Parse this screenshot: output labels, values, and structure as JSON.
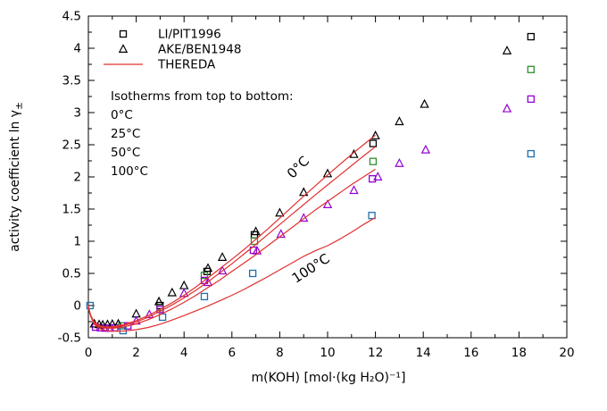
{
  "figure_title": "KOH activity coefficient isotherms",
  "colors": {
    "black": "#000000",
    "green": "#2e8f2e",
    "violet": "#9400d3",
    "blue": "#1f6eb0",
    "red": "#e03030",
    "frame": "#000000"
  },
  "chart_data": {
    "type": "scatter",
    "title": "",
    "xlabel": "m(KOH) [mol·(kg H₂O)⁻¹]",
    "ylabel_main": "activity coefficient ln γ",
    "ylabel_sub": "±",
    "xlim": [
      0,
      20
    ],
    "ylim": [
      -0.5,
      4.5
    ],
    "xtick_major": 2,
    "xtick_minor": 1,
    "ytick_major": 0.5,
    "ytick_minor": 0.25,
    "grid": false,
    "legend_position": "top-left-inside",
    "legend": [
      {
        "label": "LI/PIT1996",
        "marker": "square",
        "color": "#000000"
      },
      {
        "label": "AKE/BEN1948",
        "marker": "triangle",
        "color": "#000000"
      },
      {
        "label": "THEREDA",
        "marker": "line",
        "color": "#e03030"
      }
    ],
    "annotations": [
      {
        "text": "Isotherms from top to bottom:",
        "color": "#000000"
      },
      {
        "text": "0°C",
        "color": "#000000"
      },
      {
        "text": "25°C",
        "color": "#2e8f2e"
      },
      {
        "text": "50°C",
        "color": "#9400d3"
      },
      {
        "text": "100°C",
        "color": "#1f6eb0"
      }
    ],
    "curve_labels": [
      {
        "text": "0°C",
        "x": 8.9,
        "y": 2.1,
        "rot": -45
      },
      {
        "text": "100°C",
        "x": 9.4,
        "y": 0.52,
        "rot": -33
      }
    ],
    "series": [
      {
        "name": "LI/PIT1996 0C",
        "source": "LI/PIT1996",
        "temperature": "0°C",
        "marker": "square",
        "color": "#000000",
        "points": [
          [
            3.0,
            0.0
          ],
          [
            4.96,
            0.53
          ],
          [
            6.94,
            1.1
          ],
          [
            11.9,
            2.52
          ],
          [
            18.5,
            4.18
          ]
        ]
      },
      {
        "name": "LI/PIT1996 25C",
        "source": "LI/PIT1996",
        "temperature": "25°C",
        "marker": "square",
        "color": "#2e8f2e",
        "points": [
          [
            1.4,
            -0.315
          ],
          [
            3.0,
            -0.03
          ],
          [
            4.85,
            0.47
          ],
          [
            6.94,
            1.0
          ],
          [
            11.9,
            2.24
          ],
          [
            18.5,
            3.67
          ]
        ]
      },
      {
        "name": "LI/PIT1996 50C",
        "source": "LI/PIT1996",
        "temperature": "50°C",
        "marker": "square",
        "color": "#9400d3",
        "points": [
          [
            0.3,
            -0.335
          ],
          [
            0.5,
            -0.345
          ],
          [
            0.7,
            -0.35
          ],
          [
            0.9,
            -0.35
          ],
          [
            1.1,
            -0.345
          ],
          [
            1.65,
            -0.315
          ],
          [
            3.0,
            -0.06
          ],
          [
            4.85,
            0.39
          ],
          [
            6.9,
            0.86
          ],
          [
            11.87,
            1.97
          ],
          [
            18.5,
            3.21
          ]
        ]
      },
      {
        "name": "LI/PIT1996 100C",
        "source": "LI/PIT1996",
        "temperature": "100°C",
        "marker": "square",
        "color": "#1f6eb0",
        "points": [
          [
            0.07,
            0.0
          ],
          [
            1.45,
            -0.39
          ],
          [
            3.1,
            -0.18
          ],
          [
            4.85,
            0.14
          ],
          [
            6.87,
            0.5
          ],
          [
            11.85,
            1.4
          ],
          [
            18.5,
            2.36
          ]
        ]
      },
      {
        "name": "AKE/BEN1948 0C",
        "source": "AKE/BEN1948",
        "temperature": "0°C",
        "marker": "triangle",
        "color": "#000000",
        "points": [
          [
            0.25,
            -0.285
          ],
          [
            0.45,
            -0.295
          ],
          [
            0.6,
            -0.3
          ],
          [
            0.8,
            -0.295
          ],
          [
            1.0,
            -0.29
          ],
          [
            1.25,
            -0.285
          ],
          [
            2.0,
            -0.13
          ],
          [
            2.95,
            0.06
          ],
          [
            3.5,
            0.2
          ],
          [
            4.0,
            0.31
          ],
          [
            5.0,
            0.58
          ],
          [
            5.6,
            0.75
          ],
          [
            7.0,
            1.15
          ],
          [
            8.0,
            1.44
          ],
          [
            9.0,
            1.76
          ],
          [
            10.0,
            2.05
          ],
          [
            11.1,
            2.35
          ],
          [
            12.0,
            2.64
          ],
          [
            13.0,
            2.86
          ],
          [
            14.05,
            3.13
          ],
          [
            17.5,
            3.96
          ]
        ]
      },
      {
        "name": "AKE/BEN1948 50C",
        "source": "AKE/BEN1948",
        "temperature": "50°C",
        "marker": "triangle",
        "color": "#9400d3",
        "points": [
          [
            2.0,
            -0.24
          ],
          [
            2.55,
            -0.14
          ],
          [
            4.0,
            0.19
          ],
          [
            5.0,
            0.36
          ],
          [
            5.6,
            0.54
          ],
          [
            7.05,
            0.85
          ],
          [
            8.05,
            1.11
          ],
          [
            9.0,
            1.36
          ],
          [
            10.0,
            1.57
          ],
          [
            11.1,
            1.79
          ],
          [
            12.1,
            2.0
          ],
          [
            13.0,
            2.21
          ],
          [
            14.1,
            2.42
          ],
          [
            17.5,
            3.06
          ]
        ]
      },
      {
        "name": "THEREDA 0C",
        "source": "THEREDA",
        "temperature": "0°C",
        "type": "line",
        "color": "#e03030",
        "points": [
          [
            0,
            0
          ],
          [
            0.05,
            -0.09
          ],
          [
            0.1,
            -0.15
          ],
          [
            0.2,
            -0.23
          ],
          [
            0.3,
            -0.27
          ],
          [
            0.5,
            -0.315
          ],
          [
            0.7,
            -0.33
          ],
          [
            0.9,
            -0.33
          ],
          [
            1.1,
            -0.325
          ],
          [
            1.5,
            -0.295
          ],
          [
            2,
            -0.235
          ],
          [
            2.5,
            -0.155
          ],
          [
            3,
            -0.06
          ],
          [
            3.5,
            0.045
          ],
          [
            4,
            0.16
          ],
          [
            4.5,
            0.29
          ],
          [
            5,
            0.43
          ],
          [
            5.5,
            0.575
          ],
          [
            6,
            0.72
          ],
          [
            6.5,
            0.87
          ],
          [
            7,
            1.03
          ],
          [
            7.5,
            1.19
          ],
          [
            8,
            1.36
          ],
          [
            8.5,
            1.53
          ],
          [
            9,
            1.7
          ],
          [
            9.5,
            1.865
          ],
          [
            10,
            2.03
          ],
          [
            10.5,
            2.19
          ],
          [
            11,
            2.35
          ],
          [
            11.5,
            2.5
          ],
          [
            12,
            2.65
          ]
        ]
      },
      {
        "name": "THEREDA 25C",
        "source": "THEREDA",
        "temperature": "25°C",
        "type": "line",
        "color": "#e03030",
        "points": [
          [
            0,
            0
          ],
          [
            0.05,
            -0.095
          ],
          [
            0.1,
            -0.155
          ],
          [
            0.2,
            -0.235
          ],
          [
            0.3,
            -0.28
          ],
          [
            0.5,
            -0.325
          ],
          [
            0.7,
            -0.34
          ],
          [
            0.9,
            -0.34
          ],
          [
            1.1,
            -0.335
          ],
          [
            1.5,
            -0.31
          ],
          [
            2,
            -0.255
          ],
          [
            2.5,
            -0.18
          ],
          [
            3,
            -0.09
          ],
          [
            3.5,
            0.01
          ],
          [
            4,
            0.12
          ],
          [
            4.5,
            0.24
          ],
          [
            5,
            0.37
          ],
          [
            5.5,
            0.51
          ],
          [
            6,
            0.65
          ],
          [
            6.5,
            0.8
          ],
          [
            7,
            0.95
          ],
          [
            7.5,
            1.105
          ],
          [
            8,
            1.26
          ],
          [
            8.5,
            1.415
          ],
          [
            9,
            1.57
          ],
          [
            9.5,
            1.725
          ],
          [
            10,
            1.875
          ],
          [
            10.5,
            2.025
          ],
          [
            11,
            2.175
          ],
          [
            11.5,
            2.325
          ],
          [
            12,
            2.47
          ]
        ]
      },
      {
        "name": "THEREDA 50C",
        "source": "THEREDA",
        "temperature": "50°C",
        "type": "line",
        "color": "#e03030",
        "points": [
          [
            0,
            0
          ],
          [
            0.05,
            -0.1
          ],
          [
            0.1,
            -0.16
          ],
          [
            0.2,
            -0.245
          ],
          [
            0.3,
            -0.29
          ],
          [
            0.5,
            -0.335
          ],
          [
            0.7,
            -0.35
          ],
          [
            0.9,
            -0.352
          ],
          [
            1.1,
            -0.348
          ],
          [
            1.5,
            -0.33
          ],
          [
            2,
            -0.285
          ],
          [
            2.5,
            -0.22
          ],
          [
            3,
            -0.14
          ],
          [
            3.5,
            -0.05
          ],
          [
            4,
            0.05
          ],
          [
            4.5,
            0.16
          ],
          [
            5,
            0.28
          ],
          [
            5.5,
            0.4
          ],
          [
            6,
            0.53
          ],
          [
            6.5,
            0.66
          ],
          [
            7,
            0.79
          ],
          [
            7.5,
            0.93
          ],
          [
            8,
            1.07
          ],
          [
            8.5,
            1.21
          ],
          [
            9,
            1.35
          ],
          [
            9.5,
            1.49
          ],
          [
            10,
            1.62
          ],
          [
            10.5,
            1.75
          ],
          [
            11,
            1.88
          ],
          [
            11.5,
            2.0
          ],
          [
            12,
            2.12
          ]
        ]
      },
      {
        "name": "THEREDA 100C",
        "source": "THEREDA",
        "temperature": "100°C",
        "type": "line",
        "color": "#e03030",
        "points": [
          [
            0,
            0
          ],
          [
            0.05,
            -0.11
          ],
          [
            0.1,
            -0.17
          ],
          [
            0.2,
            -0.26
          ],
          [
            0.3,
            -0.31
          ],
          [
            0.5,
            -0.36
          ],
          [
            0.7,
            -0.385
          ],
          [
            0.9,
            -0.395
          ],
          [
            1.2,
            -0.4
          ],
          [
            1.5,
            -0.395
          ],
          [
            2,
            -0.375
          ],
          [
            2.5,
            -0.34
          ],
          [
            3,
            -0.29
          ],
          [
            3.5,
            -0.225
          ],
          [
            4,
            -0.155
          ],
          [
            4.5,
            -0.08
          ],
          [
            5,
            -0.005
          ],
          [
            5.5,
            0.075
          ],
          [
            6,
            0.16
          ],
          [
            6.5,
            0.25
          ],
          [
            7,
            0.35
          ],
          [
            7.5,
            0.45
          ],
          [
            8,
            0.555
          ],
          [
            8.5,
            0.66
          ],
          [
            9,
            0.765
          ],
          [
            9.5,
            0.855
          ],
          [
            10,
            0.93
          ],
          [
            10.5,
            1.03
          ],
          [
            11,
            1.14
          ],
          [
            11.5,
            1.26
          ],
          [
            12,
            1.37
          ]
        ]
      }
    ]
  }
}
